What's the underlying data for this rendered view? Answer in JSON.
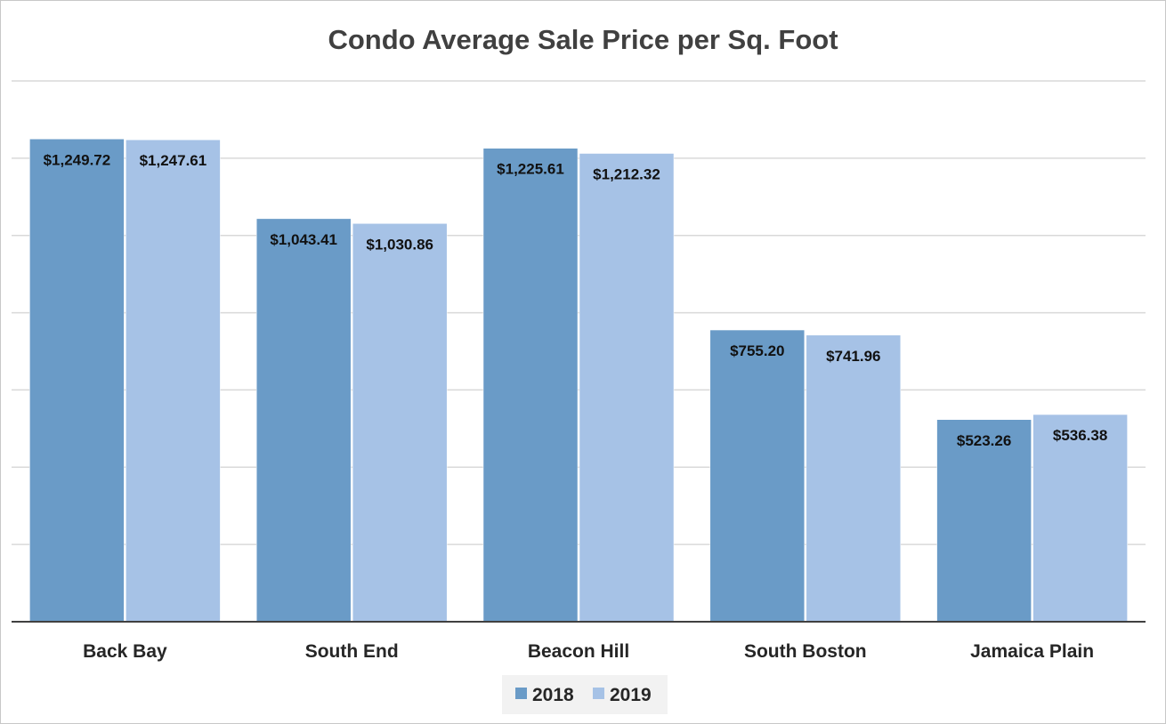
{
  "chart_data": {
    "type": "bar",
    "title": "Condo Average Sale Price per Sq. Foot",
    "xlabel": "",
    "ylabel": "",
    "categories": [
      "Back Bay",
      "South End",
      "Beacon Hill",
      "South Boston",
      "Jamaica Plain"
    ],
    "series": [
      {
        "name": "2018",
        "color": "#6a9bc7",
        "values": [
          1249.72,
          1043.41,
          1225.61,
          755.2,
          523.26
        ],
        "labels": [
          "$1,249.72",
          "$1,043.41",
          "$1,225.61",
          "$755.20",
          "$523.26"
        ]
      },
      {
        "name": "2019",
        "color": "#a6c2e6",
        "values": [
          1247.61,
          1030.86,
          1212.32,
          741.96,
          536.38
        ],
        "labels": [
          "$1,247.61",
          "$1,030.86",
          "$1,212.32",
          "$741.96",
          "$536.38"
        ]
      }
    ],
    "ylim": [
      0,
      1400
    ],
    "gridlines": [
      200,
      400,
      600,
      800,
      1000,
      1200,
      1400
    ],
    "grid": true,
    "y_tick_labels_visible": false,
    "legend": "bottom-center"
  }
}
